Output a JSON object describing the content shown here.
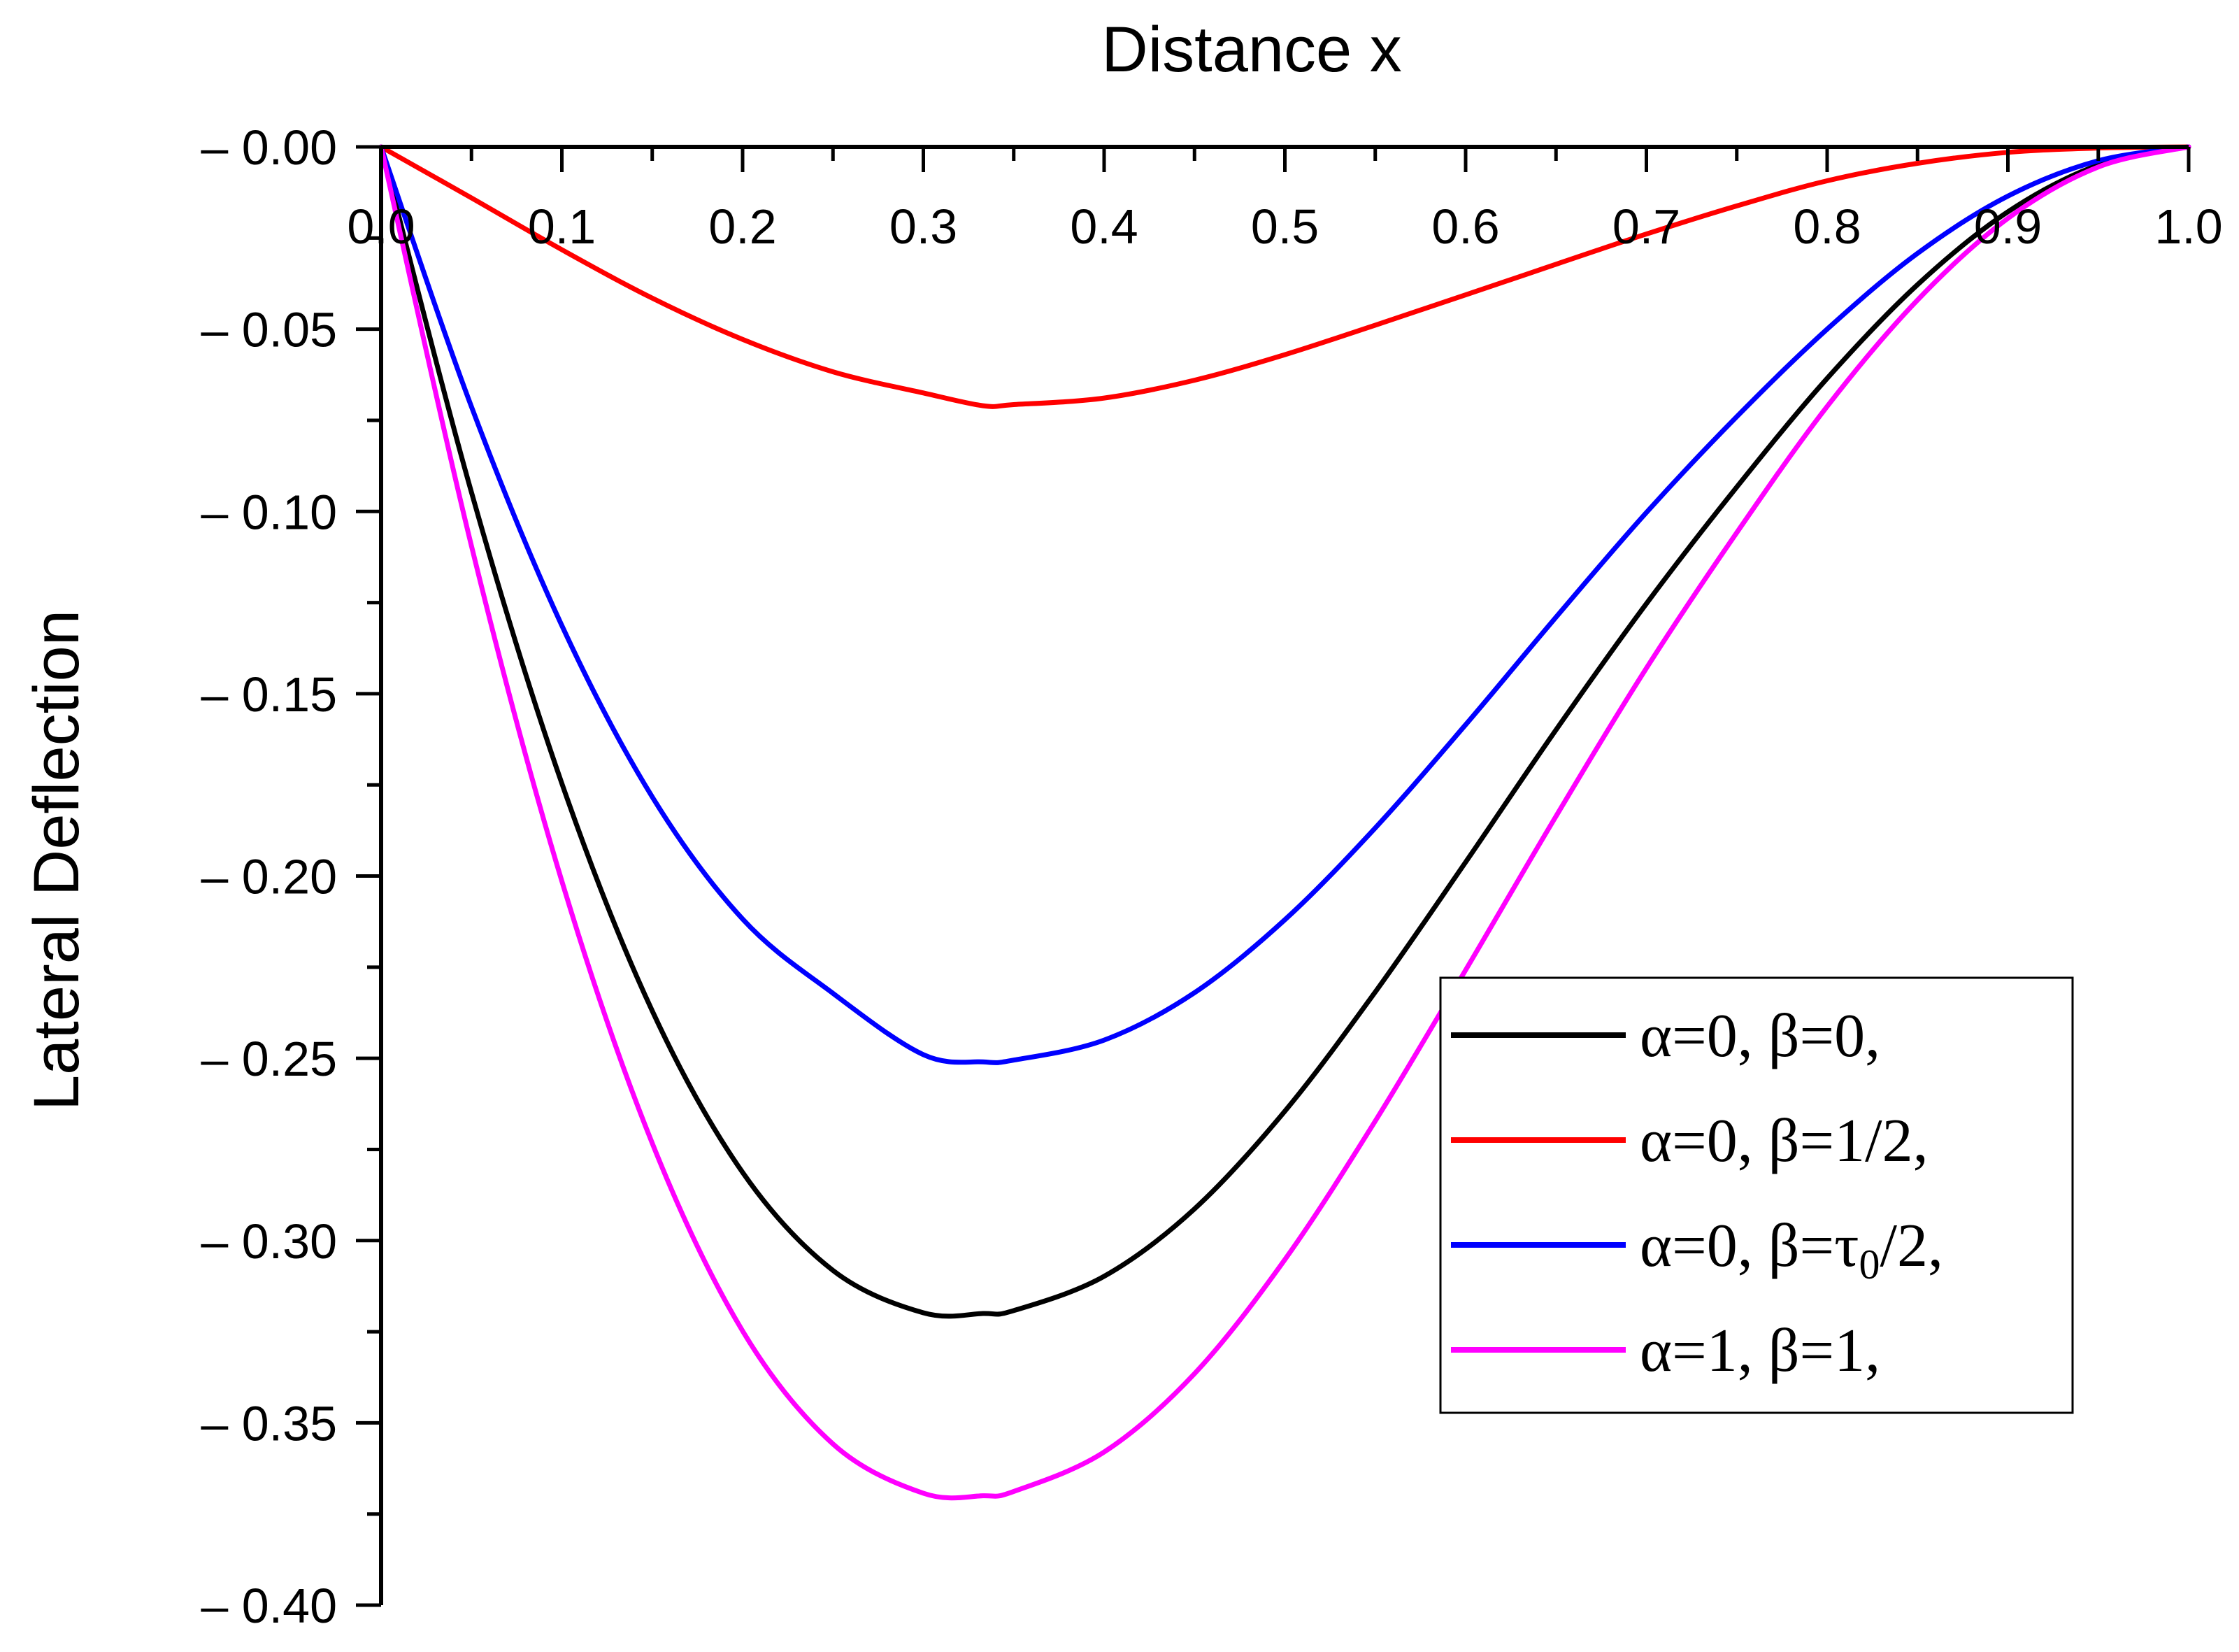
{
  "chart_data": {
    "type": "line",
    "title": "",
    "xlabel": "Distance x",
    "ylabel": "Lateral Deflection",
    "xlim": [
      0.0,
      1.0
    ],
    "ylim": [
      -0.4,
      0.0
    ],
    "x_ticks": [
      "0.0",
      "0.1",
      "0.2",
      "0.3",
      "0.4",
      "0.5",
      "0.6",
      "0.7",
      "0.8",
      "0.9",
      "1.0"
    ],
    "y_ticks": [
      "– 0.00",
      "– 0.05",
      "– 0.10",
      "– 0.15",
      "– 0.20",
      "– 0.25",
      "– 0.30",
      "– 0.35",
      "– 0.40"
    ],
    "x_tick_values": [
      0.0,
      0.1,
      0.2,
      0.3,
      0.4,
      0.5,
      0.6,
      0.7,
      0.8,
      0.9,
      1.0
    ],
    "y_tick_values": [
      0.0,
      -0.05,
      -0.1,
      -0.15,
      -0.2,
      -0.25,
      -0.3,
      -0.35,
      -0.4
    ],
    "grid": false,
    "legend_position": "right",
    "x": [
      0.0,
      0.05,
      0.1,
      0.15,
      0.2,
      0.25,
      0.3,
      0.333,
      0.35,
      0.4,
      0.45,
      0.5,
      0.55,
      0.6,
      0.65,
      0.7,
      0.75,
      0.8,
      0.85,
      0.9,
      0.95,
      1.0
    ],
    "series": [
      {
        "name": "α=0, β=0,",
        "legend_prefix": "α=0, β=0,",
        "legend_sub": "",
        "legend_suffix": "",
        "color": "#000000",
        "values": [
          0.0,
          -0.0948,
          -0.1746,
          -0.237,
          -0.2813,
          -0.3082,
          -0.3198,
          -0.32,
          -0.3192,
          -0.3098,
          -0.2913,
          -0.2645,
          -0.2318,
          -0.1962,
          -0.1599,
          -0.1253,
          -0.0933,
          -0.0635,
          -0.0378,
          -0.0178,
          -0.005,
          0.0
        ]
      },
      {
        "name": "α=0, β=1/2,",
        "legend_prefix": "α=0, β=1/2,",
        "legend_sub": "",
        "legend_suffix": "",
        "color": "#ff0000",
        "values": [
          0.0,
          -0.014,
          -0.0282,
          -0.0415,
          -0.0528,
          -0.0617,
          -0.0675,
          -0.071,
          -0.0707,
          -0.0689,
          -0.064,
          -0.057,
          -0.0489,
          -0.0406,
          -0.0322,
          -0.0239,
          -0.0162,
          -0.0093,
          -0.0045,
          -0.0015,
          -0.0003,
          0.0
        ]
      },
      {
        "name": "α=0, β=τ0/2,",
        "legend_prefix": "α=0, β=τ",
        "legend_sub": "0",
        "legend_suffix": "/2,",
        "color": "#0000ff",
        "values": [
          0.0,
          -0.0713,
          -0.1313,
          -0.1783,
          -0.2118,
          -0.2322,
          -0.249,
          -0.251,
          -0.2505,
          -0.245,
          -0.232,
          -0.212,
          -0.1868,
          -0.1585,
          -0.129,
          -0.1003,
          -0.074,
          -0.05,
          -0.0292,
          -0.0135,
          -0.0038,
          0.0
        ]
      },
      {
        "name": "α=1, β=1,",
        "legend_prefix": "α=1, β=1,",
        "legend_sub": "",
        "legend_suffix": "",
        "color": "#ff00ff",
        "values": [
          0.0,
          -0.1095,
          -0.2014,
          -0.2733,
          -0.3248,
          -0.3558,
          -0.3693,
          -0.37,
          -0.3688,
          -0.358,
          -0.3365,
          -0.3052,
          -0.2672,
          -0.2258,
          -0.1836,
          -0.143,
          -0.1058,
          -0.0712,
          -0.042,
          -0.0196,
          -0.0055,
          0.0
        ]
      }
    ]
  }
}
